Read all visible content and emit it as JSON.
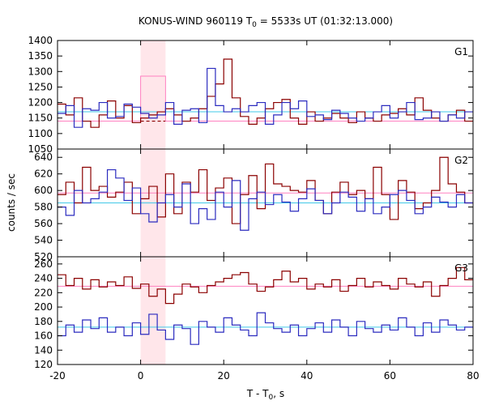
{
  "chart_data": {
    "type": "line",
    "title": "KONUS-WIND 960119 T",
    "title_sub": "0",
    "title_rest": " = 5533s UT (01:32:13.000)",
    "xlabel": "T - T",
    "xlabel_sub": "0",
    "xlabel_rest": ", s",
    "ylabel": "counts / sec",
    "xlim": [
      -20,
      80
    ],
    "xticks": [
      -20,
      0,
      20,
      40,
      60,
      80
    ],
    "highlight_interval": [
      0,
      6
    ],
    "colors": {
      "series_red": "#8b0000",
      "series_blue": "#2b2bbf",
      "bg_red": "#ff80c0",
      "bg_blue": "#40c8e8",
      "highlight": "#ffe6ea"
    },
    "panels": [
      {
        "label": "G1",
        "ylim": [
          1050,
          1400
        ],
        "yticks": [
          1050,
          1100,
          1150,
          1200,
          1250,
          1300,
          1350,
          1400
        ],
        "background": {
          "red": 1140,
          "blue": 1170
        },
        "x_start": -20,
        "bin_width": 2,
        "red_bg_dashed_through": 6,
        "series": [
          {
            "color": "red",
            "values": [
              1195,
              1160,
              1215,
              1140,
              1120,
              1160,
              1205,
              1150,
              1190,
              1135,
              1150,
              1160,
              1170,
              1180,
              1160,
              1140,
              1150,
              1180,
              1220,
              1260,
              1340,
              1215,
              1155,
              1130,
              1150,
              1180,
              1200,
              1210,
              1150,
              1130,
              1170,
              1140,
              1150,
              1165,
              1150,
              1135,
              1170,
              1150,
              1140,
              1160,
              1165,
              1180,
              1160,
              1215,
              1175,
              1150,
              1140,
              1160,
              1175,
              1140
            ]
          },
          {
            "color": "blue",
            "values": [
              1165,
              1190,
              1120,
              1180,
              1175,
              1200,
              1150,
              1155,
              1195,
              1185,
              1165,
              1150,
              1160,
              1200,
              1130,
              1175,
              1180,
              1135,
              1310,
              1190,
              1170,
              1180,
              1170,
              1190,
              1200,
              1130,
              1160,
              1200,
              1180,
              1205,
              1155,
              1160,
              1145,
              1175,
              1165,
              1150,
              1140,
              1150,
              1170,
              1190,
              1150,
              1170,
              1200,
              1145,
              1150,
              1170,
              1140,
              1160,
              1150,
              1170
            ]
          }
        ],
        "red_overlay_peak": {
          "x0": 0,
          "x1": 6,
          "value": 1285
        }
      },
      {
        "label": "G2",
        "ylim": [
          520,
          650
        ],
        "yticks": [
          520,
          540,
          560,
          580,
          600,
          620,
          640
        ],
        "background": {
          "red": 597,
          "blue": 585
        },
        "x_start": -20,
        "bin_width": 2,
        "series": [
          {
            "color": "red",
            "values": [
              595,
              610,
              585,
              628,
              600,
              605,
              592,
              598,
              610,
              572,
              590,
              605,
              568,
              620,
              572,
              610,
              598,
              625,
              588,
              603,
              615,
              560,
              595,
              618,
              578,
              632,
              608,
              605,
              600,
              598,
              612,
              588,
              572,
              598,
              610,
              595,
              600,
              590,
              628,
              595,
              565,
              612,
              598,
              578,
              585,
              600,
              640,
              608,
              598,
              585
            ]
          },
          {
            "color": "blue",
            "values": [
              580,
              570,
              600,
              585,
              590,
              598,
              625,
              615,
              588,
              603,
              572,
              562,
              585,
              595,
              580,
              608,
              560,
              578,
              565,
              598,
              580,
              612,
              552,
              590,
              598,
              583,
              595,
              586,
              575,
              590,
              602,
              588,
              572,
              585,
              598,
              592,
              575,
              590,
              572,
              580,
              595,
              600,
              588,
              572,
              580,
              592,
              586,
              580,
              595,
              585
            ]
          }
        ]
      },
      {
        "label": "G3",
        "ylim": [
          120,
          270
        ],
        "yticks": [
          120,
          140,
          160,
          180,
          200,
          220,
          240,
          260
        ],
        "background": {
          "red": 229,
          "blue": 172
        },
        "x_start": -20,
        "bin_width": 2,
        "series": [
          {
            "color": "red",
            "values": [
              245,
              230,
              240,
              225,
              238,
              228,
              235,
              230,
              242,
              226,
              232,
              215,
              225,
              205,
              218,
              232,
              228,
              220,
              230,
              235,
              240,
              245,
              248,
              232,
              222,
              228,
              238,
              250,
              235,
              240,
              225,
              232,
              228,
              238,
              222,
              230,
              240,
              228,
              235,
              230,
              225,
              240,
              232,
              228,
              235,
              215,
              230,
              240,
              255,
              238
            ]
          },
          {
            "color": "blue",
            "values": [
              160,
              175,
              165,
              182,
              170,
              185,
              165,
              172,
              160,
              178,
              162,
              190,
              168,
              155,
              175,
              170,
              148,
              180,
              172,
              165,
              185,
              175,
              168,
              160,
              192,
              178,
              170,
              165,
              175,
              160,
              170,
              178,
              165,
              182,
              172,
              160,
              180,
              170,
              165,
              175,
              168,
              185,
              172,
              160,
              178,
              165,
              182,
              175,
              168,
              172
            ]
          }
        ]
      }
    ]
  }
}
